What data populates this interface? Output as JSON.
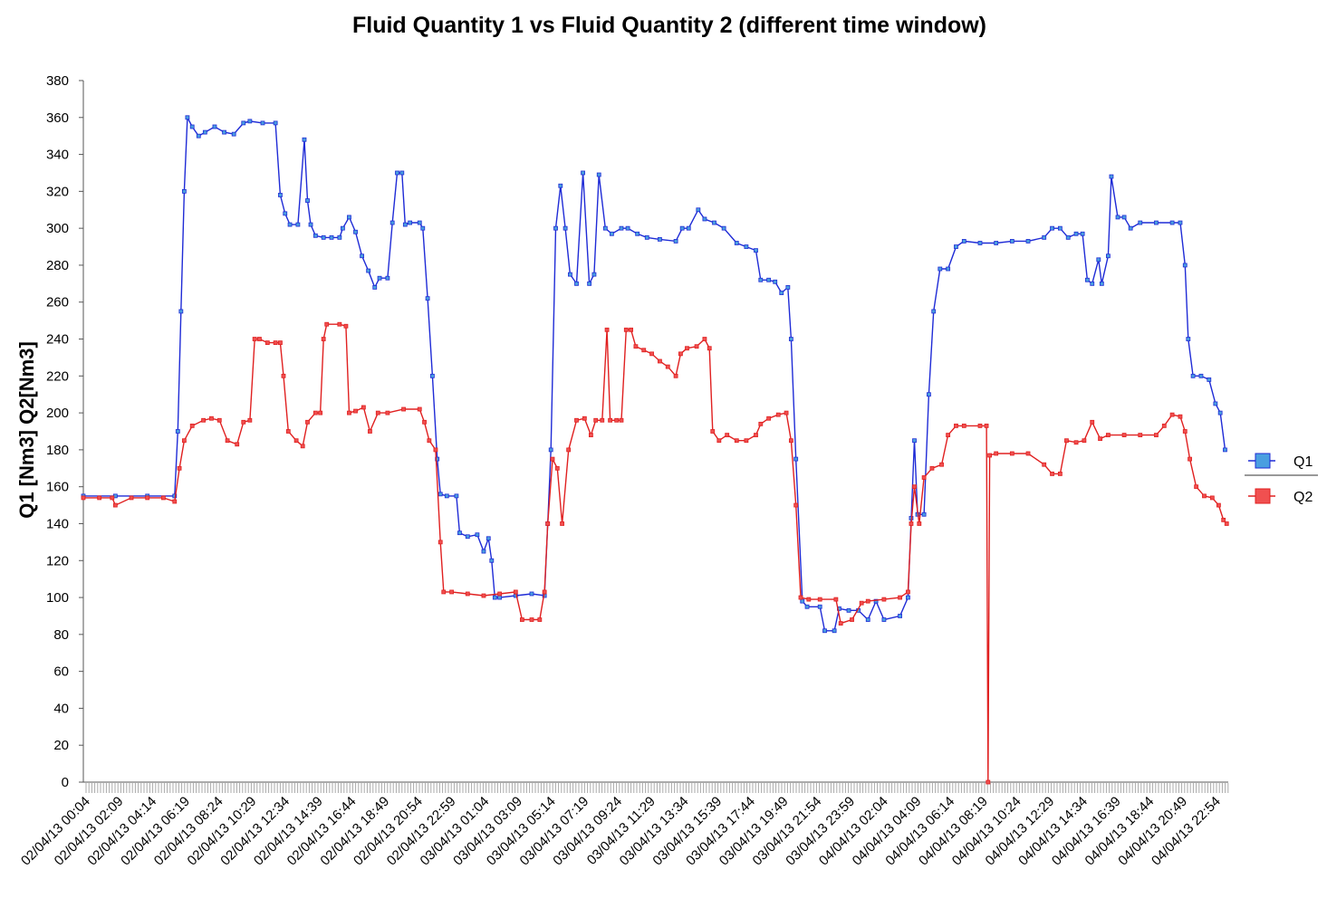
{
  "chart_data": {
    "type": "line",
    "title": "Fluid Quantity 1 vs Fluid Quantity 2 (different time window)",
    "xlabel": "",
    "ylabel": "Q1 [Nm3] Q2[Nm3]",
    "ylim": [
      0,
      380
    ],
    "yticks": [
      0,
      20,
      40,
      60,
      80,
      100,
      120,
      140,
      160,
      180,
      200,
      220,
      240,
      260,
      280,
      300,
      320,
      340,
      360,
      380
    ],
    "grid": false,
    "legend_position": "right",
    "x_tick_labels": [
      "02/04/13 00:04",
      "02/04/13 02:09",
      "02/04/13 04:14",
      "02/04/13 06:19",
      "02/04/13 08:24",
      "02/04/13 10:29",
      "02/04/13 12:34",
      "02/04/13 14:39",
      "02/04/13 16:44",
      "02/04/13 18:49",
      "02/04/13 20:54",
      "02/04/13 22:59",
      "03/04/13 01:04",
      "03/04/13 03:09",
      "03/04/13 05:14",
      "03/04/13 07:19",
      "03/04/13 09:24",
      "03/04/13 11:29",
      "03/04/13 13:34",
      "03/04/13 15:39",
      "03/04/13 17:44",
      "03/04/13 19:49",
      "03/04/13 21:54",
      "03/04/13 23:59",
      "04/04/13 02:04",
      "04/04/13 04:09",
      "04/04/13 06:14",
      "04/04/13 08:19",
      "04/04/13 10:24",
      "04/04/13 12:29",
      "04/04/13 14:34",
      "04/04/13 16:39",
      "04/04/13 18:44",
      "04/04/13 20:49",
      "04/04/13 22:54"
    ],
    "x_range_hours": [
      0,
      71.5
    ],
    "series": [
      {
        "name": "Q1",
        "color": "#1f2bd6",
        "marker_fill": "#4a9fe0",
        "points": [
          [
            0,
            155
          ],
          [
            2,
            155
          ],
          [
            4,
            155
          ],
          [
            5.7,
            155
          ],
          [
            5.9,
            190
          ],
          [
            6.1,
            255
          ],
          [
            6.3,
            320
          ],
          [
            6.5,
            360
          ],
          [
            6.8,
            355
          ],
          [
            7.2,
            350
          ],
          [
            7.6,
            352
          ],
          [
            8.2,
            355
          ],
          [
            8.8,
            352
          ],
          [
            9.4,
            351
          ],
          [
            10,
            357
          ],
          [
            10.4,
            358
          ],
          [
            11.2,
            357
          ],
          [
            12,
            357
          ],
          [
            12.3,
            318
          ],
          [
            12.6,
            308
          ],
          [
            12.9,
            302
          ],
          [
            13.4,
            302
          ],
          [
            13.8,
            348
          ],
          [
            14.0,
            315
          ],
          [
            14.2,
            302
          ],
          [
            14.5,
            296
          ],
          [
            15,
            295
          ],
          [
            15.5,
            295
          ],
          [
            16,
            295
          ],
          [
            16.2,
            300
          ],
          [
            16.6,
            306
          ],
          [
            17.0,
            298
          ],
          [
            17.4,
            285
          ],
          [
            17.8,
            277
          ],
          [
            18.2,
            268
          ],
          [
            18.5,
            273
          ],
          [
            19,
            273
          ],
          [
            19.3,
            303
          ],
          [
            19.6,
            330
          ],
          [
            19.9,
            330
          ],
          [
            20.1,
            302
          ],
          [
            20.4,
            303
          ],
          [
            21,
            303
          ],
          [
            21.2,
            300
          ],
          [
            21.5,
            262
          ],
          [
            21.8,
            220
          ],
          [
            22.1,
            175
          ],
          [
            22.3,
            156
          ],
          [
            22.7,
            155
          ],
          [
            23.3,
            155
          ],
          [
            23.5,
            135
          ],
          [
            24,
            133
          ],
          [
            24.6,
            134
          ],
          [
            25,
            125
          ],
          [
            25.3,
            132
          ],
          [
            25.5,
            120
          ],
          [
            25.7,
            100
          ],
          [
            26,
            100
          ],
          [
            27,
            101
          ],
          [
            28,
            102
          ],
          [
            28.8,
            101
          ],
          [
            29,
            140
          ],
          [
            29.2,
            180
          ],
          [
            29.5,
            300
          ],
          [
            29.8,
            323
          ],
          [
            30.1,
            300
          ],
          [
            30.4,
            275
          ],
          [
            30.8,
            270
          ],
          [
            31.2,
            330
          ],
          [
            31.6,
            270
          ],
          [
            31.9,
            275
          ],
          [
            32.2,
            329
          ],
          [
            32.6,
            300
          ],
          [
            33,
            297
          ],
          [
            33.6,
            300
          ],
          [
            34,
            300
          ],
          [
            34.6,
            297
          ],
          [
            35.2,
            295
          ],
          [
            36,
            294
          ],
          [
            37,
            293
          ],
          [
            37.4,
            300
          ],
          [
            37.8,
            300
          ],
          [
            38.4,
            310
          ],
          [
            38.8,
            305
          ],
          [
            39.4,
            303
          ],
          [
            40,
            300
          ],
          [
            40.8,
            292
          ],
          [
            41.4,
            290
          ],
          [
            42,
            288
          ],
          [
            42.3,
            272
          ],
          [
            42.8,
            272
          ],
          [
            43.2,
            271
          ],
          [
            43.6,
            265
          ],
          [
            44,
            268
          ],
          [
            44.2,
            240
          ],
          [
            44.5,
            175
          ],
          [
            44.9,
            98
          ],
          [
            45.2,
            95
          ],
          [
            46,
            95
          ],
          [
            46.3,
            82
          ],
          [
            46.9,
            82
          ],
          [
            47.2,
            94
          ],
          [
            47.8,
            93
          ],
          [
            48.4,
            93
          ],
          [
            49,
            88
          ],
          [
            49.5,
            98
          ],
          [
            50,
            88
          ],
          [
            51,
            90
          ],
          [
            51.5,
            100
          ],
          [
            51.7,
            143
          ],
          [
            51.9,
            185
          ],
          [
            52.1,
            145
          ],
          [
            52.5,
            145
          ],
          [
            52.8,
            210
          ],
          [
            53.1,
            255
          ],
          [
            53.5,
            278
          ],
          [
            54,
            278
          ],
          [
            54.5,
            290
          ],
          [
            55,
            293
          ],
          [
            56,
            292
          ],
          [
            57,
            292
          ],
          [
            58,
            293
          ],
          [
            59,
            293
          ],
          [
            60,
            295
          ],
          [
            60.5,
            300
          ],
          [
            61,
            300
          ],
          [
            61.5,
            295
          ],
          [
            62,
            297
          ],
          [
            62.4,
            297
          ],
          [
            62.7,
            272
          ],
          [
            63,
            270
          ],
          [
            63.4,
            283
          ],
          [
            63.6,
            270
          ],
          [
            64,
            285
          ],
          [
            64.2,
            328
          ],
          [
            64.6,
            306
          ],
          [
            65,
            306
          ],
          [
            65.4,
            300
          ],
          [
            66,
            303
          ],
          [
            67,
            303
          ],
          [
            68,
            303
          ],
          [
            68.5,
            303
          ],
          [
            68.8,
            280
          ],
          [
            69,
            240
          ],
          [
            69.3,
            220
          ],
          [
            69.8,
            220
          ],
          [
            70.3,
            218
          ],
          [
            70.7,
            205
          ],
          [
            71,
            200
          ],
          [
            71.3,
            180
          ]
        ]
      },
      {
        "name": "Q2",
        "color": "#e02020",
        "marker_fill": "#f05050",
        "points": [
          [
            0,
            154
          ],
          [
            1,
            154
          ],
          [
            1.8,
            154
          ],
          [
            2,
            150
          ],
          [
            3,
            154
          ],
          [
            4,
            154
          ],
          [
            5,
            154
          ],
          [
            5.7,
            152
          ],
          [
            6,
            170
          ],
          [
            6.3,
            185
          ],
          [
            6.8,
            193
          ],
          [
            7.5,
            196
          ],
          [
            8,
            197
          ],
          [
            8.5,
            196
          ],
          [
            9,
            185
          ],
          [
            9.6,
            183
          ],
          [
            10,
            195
          ],
          [
            10.4,
            196
          ],
          [
            10.7,
            240
          ],
          [
            11,
            240
          ],
          [
            11.5,
            238
          ],
          [
            12,
            238
          ],
          [
            12.3,
            238
          ],
          [
            12.5,
            220
          ],
          [
            12.8,
            190
          ],
          [
            13.3,
            185
          ],
          [
            13.7,
            182
          ],
          [
            14,
            195
          ],
          [
            14.5,
            200
          ],
          [
            14.8,
            200
          ],
          [
            15,
            240
          ],
          [
            15.2,
            248
          ],
          [
            16,
            248
          ],
          [
            16.4,
            247
          ],
          [
            16.6,
            200
          ],
          [
            17,
            201
          ],
          [
            17.5,
            203
          ],
          [
            17.9,
            190
          ],
          [
            18.4,
            200
          ],
          [
            19,
            200
          ],
          [
            20,
            202
          ],
          [
            21,
            202
          ],
          [
            21.3,
            195
          ],
          [
            21.6,
            185
          ],
          [
            22,
            180
          ],
          [
            22.3,
            130
          ],
          [
            22.5,
            103
          ],
          [
            23,
            103
          ],
          [
            24,
            102
          ],
          [
            25,
            101
          ],
          [
            26,
            102
          ],
          [
            27,
            103
          ],
          [
            27.4,
            88
          ],
          [
            28,
            88
          ],
          [
            28.5,
            88
          ],
          [
            28.8,
            103
          ],
          [
            29,
            140
          ],
          [
            29.3,
            175
          ],
          [
            29.6,
            170
          ],
          [
            29.9,
            140
          ],
          [
            30.3,
            180
          ],
          [
            30.8,
            196
          ],
          [
            31.3,
            197
          ],
          [
            31.7,
            188
          ],
          [
            32,
            196
          ],
          [
            32.4,
            196
          ],
          [
            32.7,
            245
          ],
          [
            32.9,
            196
          ],
          [
            33.3,
            196
          ],
          [
            33.6,
            196
          ],
          [
            33.9,
            245
          ],
          [
            34.2,
            245
          ],
          [
            34.5,
            236
          ],
          [
            35,
            234
          ],
          [
            35.5,
            232
          ],
          [
            36,
            228
          ],
          [
            36.5,
            225
          ],
          [
            37,
            220
          ],
          [
            37.3,
            232
          ],
          [
            37.7,
            235
          ],
          [
            38.3,
            236
          ],
          [
            38.8,
            240
          ],
          [
            39.1,
            235
          ],
          [
            39.3,
            190
          ],
          [
            39.7,
            185
          ],
          [
            40.2,
            188
          ],
          [
            40.8,
            185
          ],
          [
            41.4,
            185
          ],
          [
            42,
            188
          ],
          [
            42.3,
            194
          ],
          [
            42.8,
            197
          ],
          [
            43.4,
            199
          ],
          [
            43.9,
            200
          ],
          [
            44.2,
            185
          ],
          [
            44.5,
            150
          ],
          [
            44.8,
            100
          ],
          [
            45.3,
            99
          ],
          [
            46,
            99
          ],
          [
            47,
            99
          ],
          [
            47.3,
            86
          ],
          [
            48,
            88
          ],
          [
            48.6,
            97
          ],
          [
            49,
            98
          ],
          [
            50,
            99
          ],
          [
            51,
            100
          ],
          [
            51.5,
            103
          ],
          [
            51.7,
            140
          ],
          [
            51.9,
            160
          ],
          [
            52.2,
            140
          ],
          [
            52.5,
            165
          ],
          [
            53,
            170
          ],
          [
            53.6,
            172
          ],
          [
            54,
            188
          ],
          [
            54.5,
            193
          ],
          [
            55,
            193
          ],
          [
            56,
            193
          ],
          [
            56.4,
            193
          ],
          [
            56.5,
            0
          ],
          [
            56.6,
            177
          ],
          [
            57,
            178
          ],
          [
            58,
            178
          ],
          [
            59,
            178
          ],
          [
            60,
            172
          ],
          [
            60.5,
            167
          ],
          [
            61,
            167
          ],
          [
            61.4,
            185
          ],
          [
            62,
            184
          ],
          [
            62.5,
            185
          ],
          [
            63,
            195
          ],
          [
            63.5,
            186
          ],
          [
            64,
            188
          ],
          [
            65,
            188
          ],
          [
            66,
            188
          ],
          [
            67,
            188
          ],
          [
            67.5,
            193
          ],
          [
            68,
            199
          ],
          [
            68.5,
            198
          ],
          [
            68.8,
            190
          ],
          [
            69.1,
            175
          ],
          [
            69.5,
            160
          ],
          [
            70,
            155
          ],
          [
            70.5,
            154
          ],
          [
            70.9,
            150
          ],
          [
            71.2,
            142
          ],
          [
            71.4,
            140
          ]
        ]
      }
    ]
  }
}
